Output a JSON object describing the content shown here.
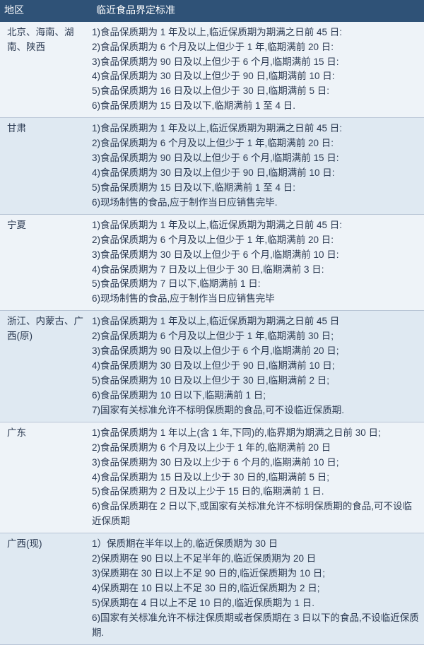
{
  "header": {
    "region": "地区",
    "standard": "临近食品界定标准"
  },
  "rows": [
    {
      "region": "北京、海南、湖南、陕西",
      "lines": [
        "1)食品保质期为 1 年及以上,临近保质期为期满之日前 45 日:",
        "2)食品保质期为 6 个月及以上但少于 1 年,临期满前 20 日:",
        "3)食品保质期为 90 日及以上但少于 6 个月,临期满前 15 日:",
        "4)食品保质期为 30 日及以上但少于 90 日,临期满前 10 日:",
        "5)食品保质期为 16 日及以上但少于 30 日,临期满前 5 日:",
        "6)食品保质期为 15 日及以下,临期满前 1 至 4 日."
      ]
    },
    {
      "region": "甘肃",
      "lines": [
        "1)食品保质期为 1 年及以上,临近保质期为期满之日前 45 日:",
        "2)食品保质期为 6 个月及以上但少于 1 年,临期满前 20 日:",
        "3)食品保质期为 90 日及以上但少于 6 个月,临期满前 15 日:",
        "4)食品保质期为 30 日及以上但少于 90 日,临期满前 10 日:",
        "5)食品保质期为 15 日及以下,临期满前 1 至 4 日:",
        "6)现场制售的食品,应于制作当日应销售完毕."
      ]
    },
    {
      "region": "宁夏",
      "lines": [
        "1)食品保质期为 1 年及以上,临近保质期为期满之日前 45 日:",
        "2)食品保质期为 6 个月及以上但少于 1 年,临期满前 20 日:",
        "3)食品保质期为 30 日及以上但少于 6 个月,临期满前 10 日:",
        "4)食品保质期为 7 日及以上但少于 30 日,临期满前 3 日:",
        "5)食品保质期为 7 日以下,临期满前 1 日:",
        "6)现场制售的食品,应于制作当日应销售完毕"
      ]
    },
    {
      "region": "浙江、内蒙古、广西(原)",
      "lines": [
        "1)食品保质期为 1 年及以上,临近保质期为期满之日前 45 日",
        "2)食品保质期为 6 个月及以上但少于 1 年,临期满前 30 日;",
        "3)食品保质期为 90 日及以上但少于 6 个月,临期满前 20 日;",
        "4)食品保质期为 30 日及以上但少于 90 日,临期满前 10 日;",
        "5)食品保质期为 10 日及以上但少于 30 日,临期满前 2 日;",
        "6)食品保质期为 10 日以下,临期满前 1 日;",
        "7)国家有关标准允许不标明保质期的食品,可不设临近保质期."
      ]
    },
    {
      "region": "广东",
      "lines": [
        "1)食品保质期为 1 年以上(含 1 年,下同)的,临界期为期满之日前 30 日;",
        "2)食品保质期为 6 个月及以上少于 1 年的,临期满前 20 日",
        "3)食品保质期为 30 日及以上少于 6 个月的,临期满前 10 日;",
        "4)食品保质期为 15 日及以上少于 30 日的,临期满前 5 日;",
        "5)食品保质期为 2 日及以上少于 15 日的,临期满前 1 日.",
        "6)食品保质期在 2 日以下,或国家有关标准允许不标明保质期的食品,可不设临近保质期"
      ]
    },
    {
      "region": "广西(现)",
      "lines": [
        "1）保质期在半年以上的,临近保质期为 30 日",
        "2)保质期在 90 日以上不足半年的,临近保质期为 20 日",
        "3)保质期在 30 日以上不足 90 日的,临近保质期为 10 日;",
        "4)保质期在 10 日以上不足 30 日的,临近保质期为 2 日;",
        "5)保质期在 4 日以上不足 10 日的,临近保质期为 1 日.",
        "6)国家有关标准允许不标注保质期或者保质期在 3 日以下的食品,不设临近保质期."
      ]
    }
  ]
}
